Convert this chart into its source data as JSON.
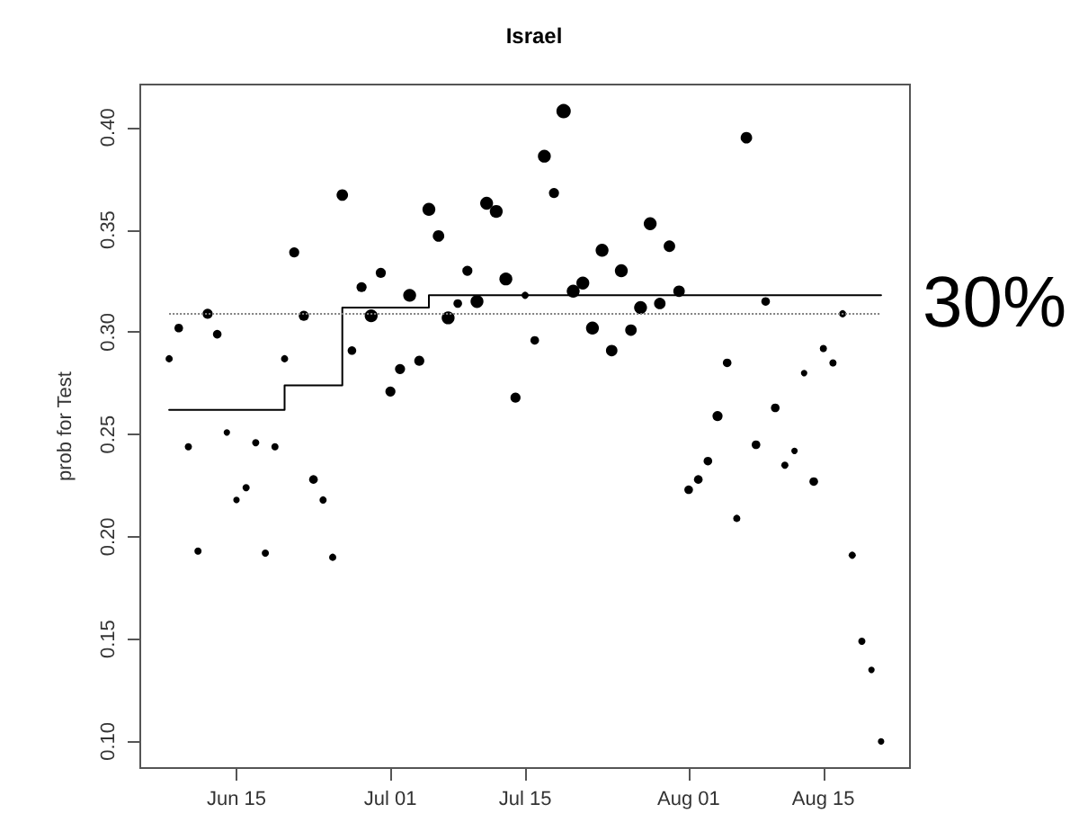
{
  "chart_data": {
    "type": "bubble",
    "title": "Israel",
    "ylabel": "prob for Test",
    "xlim": [
      "--06-05",
      "--08-24"
    ],
    "xticks": [
      {
        "value": "--06-15",
        "label": "Jun 15"
      },
      {
        "value": "--07-01",
        "label": "Jul 01"
      },
      {
        "value": "--07-15",
        "label": "Jul 15"
      },
      {
        "value": "--08-01",
        "label": "Aug 01"
      },
      {
        "value": "--08-15",
        "label": "Aug 15"
      }
    ],
    "ylim": [
      0.087,
      0.421
    ],
    "yticks": [
      {
        "value": 0.1,
        "label": "0.10"
      },
      {
        "value": 0.15,
        "label": "0.15"
      },
      {
        "value": 0.2,
        "label": "0.20"
      },
      {
        "value": 0.25,
        "label": "0.25"
      },
      {
        "value": 0.3,
        "label": "0.30"
      },
      {
        "value": 0.35,
        "label": "0.35"
      },
      {
        "value": 0.4,
        "label": "0.40"
      }
    ],
    "series": [
      {
        "color": "#000000",
        "marker": "circle",
        "x": [
          "--06-08",
          "--06-09",
          "--06-10",
          "--06-11",
          "--06-12",
          "--06-13",
          "--06-14",
          "--06-15",
          "--06-16",
          "--06-17",
          "--06-18",
          "--06-19",
          "--06-20",
          "--06-21",
          "--06-22",
          "--06-23",
          "--06-24",
          "--06-25",
          "--06-26",
          "--06-27",
          "--06-28",
          "--06-29",
          "--06-30",
          "--07-01",
          "--07-02",
          "--07-03",
          "--07-04",
          "--07-05",
          "--07-06",
          "--07-07",
          "--07-08",
          "--07-09",
          "--07-10",
          "--07-11",
          "--07-12",
          "--07-13",
          "--07-14",
          "--07-15",
          "--07-16",
          "--07-17",
          "--07-18",
          "--07-19",
          "--07-20",
          "--07-21",
          "--07-22",
          "--07-23",
          "--07-24",
          "--07-25",
          "--07-26",
          "--07-27",
          "--07-28",
          "--07-29",
          "--07-30",
          "--07-31",
          "--08-01",
          "--08-02",
          "--08-03",
          "--08-04",
          "--08-05",
          "--08-06",
          "--08-07",
          "--08-08",
          "--08-09",
          "--08-10",
          "--08-11",
          "--08-12",
          "--08-13",
          "--08-14",
          "--08-15",
          "--08-16",
          "--08-17",
          "--08-18",
          "--08-19",
          "--08-20",
          "--08-21"
        ],
        "values": [
          0.287,
          0.302,
          0.244,
          0.193,
          0.309,
          0.299,
          0.251,
          0.218,
          0.224,
          0.246,
          0.192,
          0.244,
          0.287,
          0.339,
          0.308,
          0.228,
          0.218,
          0.19,
          0.367,
          0.291,
          0.322,
          0.308,
          0.329,
          0.271,
          0.282,
          0.318,
          0.286,
          0.36,
          0.347,
          0.307,
          0.314,
          0.33,
          0.315,
          0.363,
          0.359,
          0.326,
          0.268,
          0.318,
          0.296,
          0.386,
          0.368,
          0.408,
          0.32,
          0.324,
          0.302,
          0.34,
          0.291,
          0.33,
          0.301,
          0.312,
          0.353,
          0.314,
          0.342,
          0.32,
          0.223,
          0.228,
          0.237,
          0.259,
          0.285,
          0.209,
          0.395,
          0.245,
          0.315,
          0.263,
          0.235,
          0.242,
          0.28,
          0.227,
          0.292,
          0.285,
          0.309,
          0.191,
          0.149,
          0.135,
          0.1
        ],
        "sizes": [
          0.25,
          0.36,
          0.25,
          0.25,
          0.49,
          0.36,
          0.2,
          0.2,
          0.25,
          0.25,
          0.25,
          0.25,
          0.25,
          0.49,
          0.49,
          0.36,
          0.25,
          0.25,
          0.64,
          0.36,
          0.49,
          0.81,
          0.49,
          0.49,
          0.49,
          0.81,
          0.49,
          0.81,
          0.64,
          0.81,
          0.36,
          0.49,
          0.81,
          0.81,
          0.81,
          0.81,
          0.49,
          0.25,
          0.36,
          0.81,
          0.49,
          1,
          0.81,
          0.81,
          0.81,
          0.81,
          0.64,
          0.81,
          0.64,
          0.81,
          0.81,
          0.64,
          0.64,
          0.64,
          0.36,
          0.36,
          0.36,
          0.49,
          0.36,
          0.25,
          0.64,
          0.36,
          0.36,
          0.36,
          0.25,
          0.2,
          0.2,
          0.36,
          0.25,
          0.25,
          0.25,
          0.25,
          0.25,
          0.2,
          0.2
        ]
      },
      {
        "type": "step",
        "color": "#000000",
        "marker": "none",
        "x": [
          "--06-08",
          "--06-20",
          "--06-26",
          "--07-05",
          "--08-21"
        ],
        "values": [
          0.262,
          0.274,
          0.312,
          0.318,
          0.318
        ]
      }
    ],
    "ref_lines": [
      {
        "axis": "y",
        "value": 0.309,
        "line_style": "dotted",
        "color": "#808080"
      }
    ],
    "annotations": [
      "30%"
    ]
  }
}
